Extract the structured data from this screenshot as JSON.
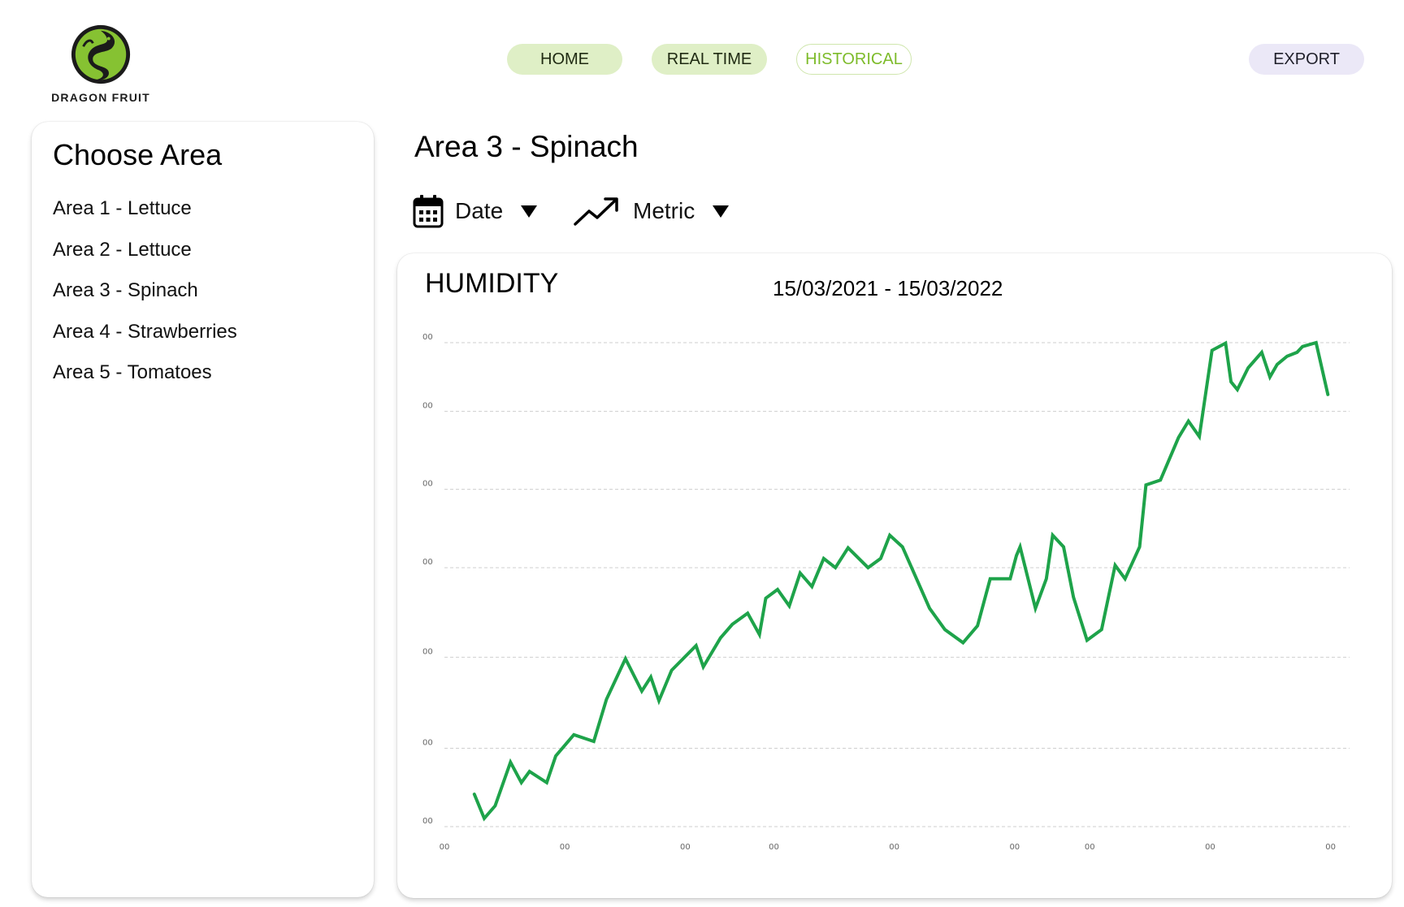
{
  "brand": {
    "name": "DRAGON FRUIT",
    "logo_icon": "dragon-logo-icon",
    "accent_green": "#7dbb2a",
    "line_green": "#1ea34a"
  },
  "nav": {
    "home": "HOME",
    "realtime": "REAL TIME",
    "historical": "HISTORICAL",
    "export": "EXPORT",
    "active": "HISTORICAL"
  },
  "area_panel": {
    "title": "Choose Area",
    "items": [
      "Area 1 - Lettuce",
      "Area 2 - Lettuce",
      "Area 3 - Spinach",
      "Area 4 - Strawberries",
      "Area 5 - Tomatoes"
    ]
  },
  "selected_area": "Area 3 - Spinach",
  "filters": {
    "date_label": "Date",
    "date_icon": "calendar-icon",
    "metric_label": "Metric",
    "metric_icon": "trend-up-icon",
    "dropdown_icon": "caret-down-icon"
  },
  "chart_data": {
    "type": "line",
    "title": "HUMIDITY",
    "date_range": "15/03/2021 - 15/03/2022",
    "xlabel": "",
    "ylabel": "",
    "ylim": [
      0,
      100
    ],
    "xlim": [
      0,
      100
    ],
    "y_ticks": [
      {
        "value": 0,
        "label": "00"
      },
      {
        "value": 16.2,
        "label": "00"
      },
      {
        "value": 35,
        "label": "00"
      },
      {
        "value": 53.5,
        "label": "00"
      },
      {
        "value": 69.7,
        "label": "00"
      },
      {
        "value": 85.8,
        "label": "00"
      },
      {
        "value": 100,
        "label": "00"
      }
    ],
    "x_ticks": [
      {
        "value": 0,
        "label": "00"
      },
      {
        "value": 13.3,
        "label": "00"
      },
      {
        "value": 26.6,
        "label": "00"
      },
      {
        "value": 36.4,
        "label": "00"
      },
      {
        "value": 49.7,
        "label": "00"
      },
      {
        "value": 63.0,
        "label": "00"
      },
      {
        "value": 71.3,
        "label": "00"
      },
      {
        "value": 84.6,
        "label": "00"
      },
      {
        "value": 97.9,
        "label": "00"
      }
    ],
    "grid": true,
    "series": [
      {
        "name": "Humidity",
        "x": [
          3.3,
          4.4,
          5.6,
          7.3,
          8.5,
          9.4,
          11.3,
          12.3,
          14.3,
          16.5,
          17.9,
          20.0,
          21.8,
          22.8,
          23.7,
          25.1,
          27.8,
          28.6,
          30.5,
          31.8,
          33.5,
          34.8,
          35.5,
          36.8,
          38.1,
          39.3,
          40.6,
          41.9,
          43.2,
          44.6,
          46.8,
          48.2,
          49.2,
          50.6,
          53.6,
          55.3,
          57.3,
          58.9,
          60.3,
          62.5,
          63.2,
          63.6,
          65.3,
          66.5,
          67.2,
          68.4,
          69.5,
          71.0,
          72.6,
          74.1,
          75.2,
          76.8,
          77.5,
          79.1,
          81.1,
          82.2,
          83.4,
          84.8,
          86.3,
          86.9,
          87.6,
          88.8,
          90.3,
          91.2,
          92.0,
          93.1,
          94.2,
          94.8,
          96.3,
          97.6
        ],
        "values": [
          6.7,
          1.7,
          4.3,
          13.3,
          9.1,
          11.4,
          9.1,
          14.6,
          19.0,
          17.6,
          26.3,
          34.7,
          28.0,
          30.9,
          26.0,
          32.3,
          37.4,
          33.0,
          39.0,
          41.8,
          44.1,
          39.7,
          47.2,
          49.0,
          45.6,
          52.4,
          49.6,
          55.4,
          53.5,
          57.6,
          53.5,
          55.4,
          60.2,
          57.8,
          45.1,
          40.7,
          38.0,
          41.5,
          51.2,
          51.2,
          56.0,
          57.8,
          45.1,
          51.2,
          60.2,
          57.8,
          47.4,
          38.5,
          40.7,
          54.0,
          51.2,
          57.8,
          70.6,
          71.6,
          80.4,
          83.8,
          80.6,
          98.4,
          99.9,
          91.9,
          90.3,
          94.8,
          98.0,
          92.9,
          95.5,
          97.2,
          98.0,
          99.2,
          100.0,
          89.3
        ]
      }
    ]
  }
}
